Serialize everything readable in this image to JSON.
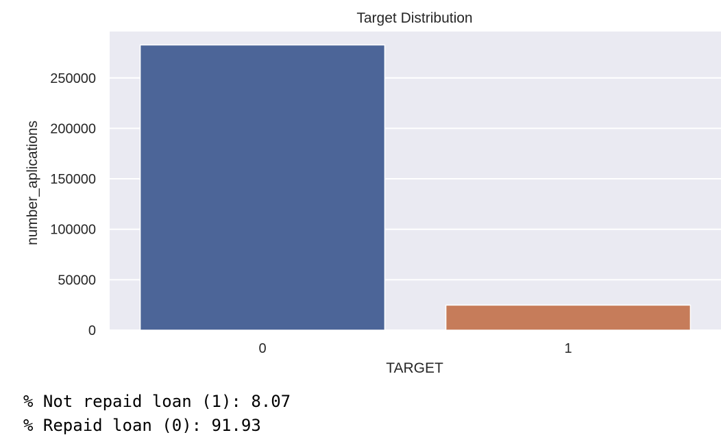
{
  "chart_data": {
    "type": "bar",
    "title": "Target Distribution",
    "xlabel": "TARGET",
    "ylabel": "number_aplications",
    "categories": [
      "0",
      "1"
    ],
    "values": [
      282686,
      24825
    ],
    "colors": [
      "#4c6598",
      "#c67c5a"
    ],
    "background_color": "#eaeaf2",
    "grid": true,
    "ylim": [
      0,
      296000
    ],
    "yticks": [
      0,
      50000,
      100000,
      150000,
      200000,
      250000
    ],
    "ytick_labels": [
      "0",
      "50000",
      "100000",
      "150000",
      "200000",
      "250000"
    ]
  },
  "output": {
    "lines": [
      "% Not repaid loan (1): 8.07",
      "% Repaid loan (0): 91.93"
    ]
  }
}
